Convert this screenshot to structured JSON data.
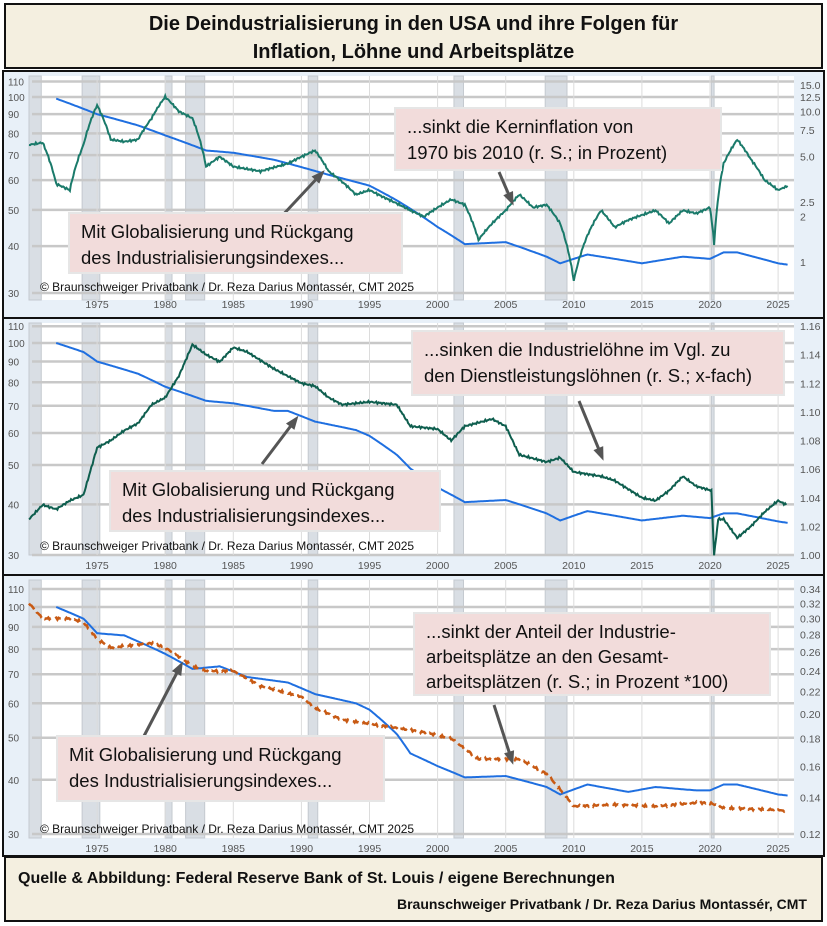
{
  "title": {
    "line1": "Die Deindustrialisierung in den USA und ihre Folgen für",
    "line2": "Inflation, Löhne und Arbeitsplätze"
  },
  "footer": {
    "line1": "Quelle & Abbildung:  Federal Reserve Bank of St. Louis  / eigene Berechnungen",
    "line2": "Braunschweiger Privatbank / Dr. Reza Darius Montassér, CMT"
  },
  "colors": {
    "index": "#1f6fe0",
    "inflation": "#1a7a6a",
    "wages": "#0e5e4e",
    "jobs": "#c85a14",
    "recession": "#d9dee4",
    "annotation": "#f2dcdb"
  },
  "recessions": [
    [
      1970,
      1970.9
    ],
    [
      1973.9,
      1975.2
    ],
    [
      1980,
      1980.5
    ],
    [
      1981.5,
      1982.9
    ],
    [
      1990.5,
      1991.2
    ],
    [
      2001.2,
      2001.9
    ],
    [
      2007.9,
      2009.5
    ],
    [
      2020.1,
      2020.3
    ]
  ],
  "chart_data": [
    {
      "type": "line",
      "copyright": "© Braunschweiger Privatbank / Dr. Reza Darius Montassér, CMT  2025",
      "xlim": [
        1970,
        2026
      ],
      "xticks": [
        1975,
        1980,
        1985,
        1990,
        1995,
        2000,
        2005,
        2010,
        2015,
        2020,
        2025
      ],
      "left_axis": {
        "scale": "log",
        "ylim": [
          30,
          110
        ],
        "ticks": [
          30,
          40,
          50,
          60,
          70,
          80,
          90,
          100,
          110
        ]
      },
      "right_axis": {
        "scale": "log",
        "ylim": [
          0.7,
          15
        ],
        "ticks": [
          "1",
          "2",
          "2.5",
          "5.0",
          "7.5",
          "10.0",
          "12.5",
          "15.0"
        ]
      },
      "annotations": [
        "...sinkt die Kerninflation von",
        "1970 bis 2010 (r. S.; in Prozent)",
        "Mit Globalisierung und Rückgang",
        "des Industrialisierungsindexes..."
      ],
      "series": [
        {
          "axis": "left",
          "style": "index",
          "values": [
            [
              1972,
              99
            ],
            [
              1975,
              90
            ],
            [
              1978,
              84
            ],
            [
              1980,
              79
            ],
            [
              1983,
              72
            ],
            [
              1985,
              71
            ],
            [
              1988,
              68
            ],
            [
              1990,
              65
            ],
            [
              1992,
              62
            ],
            [
              1995,
              58
            ],
            [
              1997,
              53
            ],
            [
              2000,
              45
            ],
            [
              2002,
              40.5
            ],
            [
              2005,
              41
            ],
            [
              2008,
              37.5
            ],
            [
              2009,
              36
            ],
            [
              2011,
              38
            ],
            [
              2015,
              36
            ],
            [
              2018,
              37.5
            ],
            [
              2020,
              37
            ],
            [
              2021,
              38.5
            ],
            [
              2022,
              38.5
            ],
            [
              2025,
              36
            ],
            [
              2025.7,
              35.7
            ]
          ]
        },
        {
          "axis": "right",
          "style": "inflation",
          "values": [
            [
              1970,
              6
            ],
            [
              1971,
              6.2
            ],
            [
              1972,
              3.3
            ],
            [
              1973,
              3
            ],
            [
              1974,
              6
            ],
            [
              1975,
              11
            ],
            [
              1976,
              6.5
            ],
            [
              1977,
              6.3
            ],
            [
              1978,
              6.5
            ],
            [
              1979,
              9
            ],
            [
              1980,
              12.5
            ],
            [
              1981,
              10
            ],
            [
              1982,
              9
            ],
            [
              1983,
              4.3
            ],
            [
              1984,
              5
            ],
            [
              1985,
              4.3
            ],
            [
              1987,
              4
            ],
            [
              1989,
              4.5
            ],
            [
              1990,
              5
            ],
            [
              1991,
              5.5
            ],
            [
              1992,
              4
            ],
            [
              1994,
              2.8
            ],
            [
              1995,
              3
            ],
            [
              1996,
              2.7
            ],
            [
              1998,
              2.2
            ],
            [
              1999,
              2
            ],
            [
              2001,
              2.6
            ],
            [
              2002,
              2.4
            ],
            [
              2003,
              1.4
            ],
            [
              2004,
              1.8
            ],
            [
              2005,
              2.2
            ],
            [
              2006,
              2.8
            ],
            [
              2007,
              2.3
            ],
            [
              2008,
              2.4
            ],
            [
              2009,
              1.8
            ],
            [
              2010,
              0.75
            ],
            [
              2011,
              1.5
            ],
            [
              2012,
              2.2
            ],
            [
              2013,
              1.7
            ],
            [
              2014,
              1.9
            ],
            [
              2016,
              2.2
            ],
            [
              2017,
              1.8
            ],
            [
              2018,
              2.2
            ],
            [
              2019,
              2.1
            ],
            [
              2020,
              2.3
            ],
            [
              2020.3,
              1.3
            ],
            [
              2021,
              4.5
            ],
            [
              2022,
              6.5
            ],
            [
              2023,
              4.8
            ],
            [
              2024,
              3.5
            ],
            [
              2025,
              3.0
            ],
            [
              2025.7,
              3.2
            ]
          ]
        }
      ]
    },
    {
      "type": "line",
      "copyright": "© Braunschweiger Privatbank / Dr. Reza Darius Montassér, CMT  2025",
      "xlim": [
        1970,
        2026
      ],
      "xticks": [
        1975,
        1980,
        1985,
        1990,
        1995,
        2000,
        2005,
        2010,
        2015,
        2020,
        2025
      ],
      "left_axis": {
        "scale": "log",
        "ylim": [
          30,
          110
        ],
        "ticks": [
          30,
          40,
          50,
          60,
          70,
          80,
          90,
          100,
          110
        ]
      },
      "right_axis": {
        "scale": "linear",
        "ylim": [
          1.0,
          1.16
        ],
        "ticks": [
          "1.00",
          "1.02",
          "1.04",
          "1.06",
          "1.08",
          "1.10",
          "1.12",
          "1.14",
          "1.16"
        ]
      },
      "annotations": [
        "...sinken die Industrielöhne im Vgl. zu",
        "den Dienstleistungslöhnen (r. S.; x-fach)",
        "Mit Globalisierung und Rückgang",
        "des Industrialisierungsindexes..."
      ],
      "series": [
        {
          "axis": "left",
          "style": "index",
          "values": [
            [
              1972,
              100
            ],
            [
              1974,
              95
            ],
            [
              1975,
              90
            ],
            [
              1978,
              84
            ],
            [
              1980,
              78
            ],
            [
              1983,
              72
            ],
            [
              1985,
              71
            ],
            [
              1988,
              68
            ],
            [
              1989,
              68
            ],
            [
              1991,
              64
            ],
            [
              1994,
              61
            ],
            [
              1995,
              59
            ],
            [
              1997,
              53
            ],
            [
              1998,
              49
            ],
            [
              2000,
              44
            ],
            [
              2002,
              40.5
            ],
            [
              2005,
              41
            ],
            [
              2008,
              38
            ],
            [
              2009,
              36.5
            ],
            [
              2011,
              38.5
            ],
            [
              2015,
              36.5
            ],
            [
              2018,
              37.5
            ],
            [
              2020,
              37
            ],
            [
              2021,
              38
            ],
            [
              2022,
              38
            ],
            [
              2025,
              36.3
            ],
            [
              2025.7,
              36
            ]
          ]
        },
        {
          "axis": "right",
          "style": "wages",
          "values": [
            [
              1970,
              1.025
            ],
            [
              1971,
              1.035
            ],
            [
              1972,
              1.032
            ],
            [
              1973,
              1.038
            ],
            [
              1974,
              1.042
            ],
            [
              1975,
              1.075
            ],
            [
              1976,
              1.08
            ],
            [
              1977,
              1.087
            ],
            [
              1978,
              1.092
            ],
            [
              1979,
              1.105
            ],
            [
              1980,
              1.11
            ],
            [
              1981,
              1.125
            ],
            [
              1982,
              1.147
            ],
            [
              1983,
              1.14
            ],
            [
              1984,
              1.135
            ],
            [
              1985,
              1.145
            ],
            [
              1986,
              1.142
            ],
            [
              1988,
              1.13
            ],
            [
              1990,
              1.12
            ],
            [
              1991,
              1.118
            ],
            [
              1992,
              1.11
            ],
            [
              1993,
              1.105
            ],
            [
              1995,
              1.107
            ],
            [
              1997,
              1.105
            ],
            [
              1998,
              1.09
            ],
            [
              2000,
              1.088
            ],
            [
              2001,
              1.08
            ],
            [
              2002,
              1.09
            ],
            [
              2004,
              1.095
            ],
            [
              2005,
              1.09
            ],
            [
              2006,
              1.07
            ],
            [
              2008,
              1.065
            ],
            [
              2009,
              1.068
            ],
            [
              2010,
              1.058
            ],
            [
              2012,
              1.055
            ],
            [
              2013,
              1.052
            ],
            [
              2015,
              1.04
            ],
            [
              2016,
              1.038
            ],
            [
              2017,
              1.045
            ],
            [
              2018,
              1.055
            ],
            [
              2019,
              1.048
            ],
            [
              2020.1,
              1.045
            ],
            [
              2020.3,
              1.0
            ],
            [
              2020.6,
              1.025
            ],
            [
              2021,
              1.025
            ],
            [
              2022,
              1.012
            ],
            [
              2023,
              1.02
            ],
            [
              2024,
              1.03
            ],
            [
              2025,
              1.038
            ],
            [
              2025.6,
              1.035
            ]
          ]
        }
      ]
    },
    {
      "type": "line",
      "copyright": "© Braunschweiger Privatbank / Dr. Reza Darius Montassér, CMT  2025",
      "xlim": [
        1970,
        2026
      ],
      "xticks": [
        1975,
        1980,
        1985,
        1990,
        1995,
        2000,
        2005,
        2010,
        2015,
        2020,
        2025
      ],
      "left_axis": {
        "scale": "log",
        "ylim": [
          30,
          110
        ],
        "ticks": [
          30,
          40,
          50,
          60,
          70,
          80,
          90,
          100,
          110
        ]
      },
      "right_axis": {
        "scale": "log",
        "ylim": [
          0.12,
          0.34
        ],
        "ticks": [
          "0.12",
          "0.14",
          "0.16",
          "0.18",
          "0.20",
          "0.22",
          "0.24",
          "0.26",
          "0.28",
          "0.30",
          "0.32",
          "0.34"
        ]
      },
      "annotations": [
        "...sinkt der Anteil der Industrie-",
        "arbeitsplätze an den Gesamt-",
        "arbeitsplätzen (r. S.; in Prozent  *100)",
        "Mit Globalisierung und Rückgang",
        "des Industrialisierungsindexes..."
      ],
      "series": [
        {
          "axis": "left",
          "style": "index",
          "values": [
            [
              1972,
              100
            ],
            [
              1974,
              94
            ],
            [
              1975,
              87
            ],
            [
              1977,
              86
            ],
            [
              1980,
              78
            ],
            [
              1982,
              72
            ],
            [
              1984,
              73
            ],
            [
              1986,
              69
            ],
            [
              1989,
              67
            ],
            [
              1991,
              63
            ],
            [
              1994,
              60
            ],
            [
              1995,
              58
            ],
            [
              1997,
              51
            ],
            [
              1998,
              46
            ],
            [
              2000,
              43
            ],
            [
              2002,
              40.5
            ],
            [
              2005,
              40.8
            ],
            [
              2008,
              38.5
            ],
            [
              2009,
              37
            ],
            [
              2011,
              39
            ],
            [
              2014,
              37.5
            ],
            [
              2016,
              38.5
            ],
            [
              2019,
              37.8
            ],
            [
              2020,
              37.8
            ],
            [
              2021,
              39
            ],
            [
              2022,
              39
            ],
            [
              2025,
              37
            ],
            [
              2025.7,
              36.8
            ]
          ]
        },
        {
          "axis": "right",
          "style": "jobs",
          "values": [
            [
              1970,
              0.32
            ],
            [
              1971,
              0.3
            ],
            [
              1973,
              0.3
            ],
            [
              1974,
              0.295
            ],
            [
              1975,
              0.275
            ],
            [
              1976,
              0.265
            ],
            [
              1979,
              0.27
            ],
            [
              1980,
              0.265
            ],
            [
              1981,
              0.255
            ],
            [
              1982,
              0.245
            ],
            [
              1983,
              0.24
            ],
            [
              1985,
              0.24
            ],
            [
              1987,
              0.225
            ],
            [
              1990,
              0.215
            ],
            [
              1991,
              0.205
            ],
            [
              1993,
              0.195
            ],
            [
              1996,
              0.19
            ],
            [
              1999,
              0.185
            ],
            [
              2001,
              0.18
            ],
            [
              2003,
              0.165
            ],
            [
              2006,
              0.165
            ],
            [
              2008,
              0.155
            ],
            [
              2009,
              0.145
            ],
            [
              2010,
              0.135
            ],
            [
              2013,
              0.136
            ],
            [
              2016,
              0.135
            ],
            [
              2019,
              0.137
            ],
            [
              2020,
              0.137
            ],
            [
              2021,
              0.134
            ],
            [
              2025,
              0.133
            ],
            [
              2025.7,
              0.132
            ]
          ]
        }
      ]
    }
  ]
}
